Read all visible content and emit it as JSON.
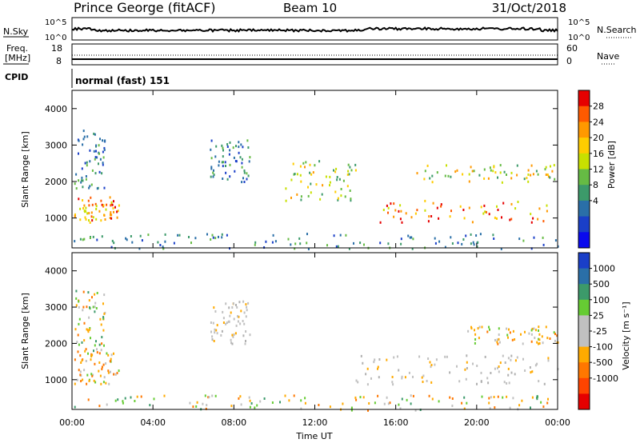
{
  "header": {
    "station": "Prince George (fitACF)",
    "beam": "Beam 10",
    "date": "31/Oct/2018"
  },
  "top_panels": {
    "nsky_label": "N.Sky",
    "nsearch_label": "N.Search",
    "nsky_ticks": [
      "10^5",
      "10^0"
    ],
    "nsearch_ticks": [
      "10^5",
      "10^0"
    ],
    "freq_label_1": "Freq.",
    "freq_label_2": "[MHz]",
    "freq_ticks": [
      "18",
      "8"
    ],
    "nave_label": "Nave",
    "nave_ticks": [
      "60",
      "0"
    ],
    "cpid_label": "CPID",
    "cpid_value": "normal (fast) 151"
  },
  "chart_data": [
    {
      "type": "heatmap",
      "quantity": "Power",
      "ylabel": "Slant Range [km]",
      "ylim": [
        180,
        4500
      ],
      "yticks": [
        1000,
        2000,
        3000,
        4000
      ],
      "xlabel": "Time UT",
      "xlim_hours": [
        0,
        24
      ],
      "xticks": [
        "00:00",
        "04:00",
        "08:00",
        "12:00",
        "16:00",
        "20:00",
        "00:00"
      ],
      "colorbar_label": "Power [dB]",
      "colorbar_ticks": [
        "28",
        "24",
        "20",
        "16",
        "12",
        "8",
        "4"
      ],
      "colorbar_colors": [
        "#e60000",
        "#ff5a00",
        "#ff9900",
        "#ffcc00",
        "#c8e000",
        "#66bb44",
        "#3c9a6a",
        "#2a6fa8",
        "#1a3fc8",
        "#0a0aee"
      ],
      "regions": [
        {
          "t": [
            0.1,
            2.3
          ],
          "r": [
            900,
            1600
          ],
          "level": "high"
        },
        {
          "t": [
            0.1,
            1.6
          ],
          "r": [
            1800,
            3500
          ],
          "level": "low"
        },
        {
          "t": [
            6.8,
            8.8
          ],
          "r": [
            2000,
            3200
          ],
          "level": "low"
        },
        {
          "t": [
            10.5,
            14.0
          ],
          "r": [
            1500,
            2600
          ],
          "level": "mid"
        },
        {
          "t": [
            15.2,
            24.0
          ],
          "r": [
            900,
            1500
          ],
          "level": "high"
        },
        {
          "t": [
            17.0,
            24.0
          ],
          "r": [
            2000,
            2500
          ],
          "level": "mid"
        },
        {
          "t": [
            0,
            24
          ],
          "r": [
            180,
            600
          ],
          "level": "low"
        }
      ]
    },
    {
      "type": "heatmap",
      "quantity": "Velocity",
      "ylabel": "Slant Range [km]",
      "ylim": [
        180,
        4500
      ],
      "yticks": [
        1000,
        2000,
        3000,
        4000
      ],
      "xlabel": "Time UT",
      "xlim_hours": [
        0,
        24
      ],
      "xticks": [
        "00:00",
        "04:00",
        "08:00",
        "12:00",
        "16:00",
        "20:00",
        "00:00"
      ],
      "colorbar_label": "Velocity [m s⁻¹]",
      "colorbar_ticks": [
        "1000",
        "500",
        "100",
        "25",
        "-25",
        "-100",
        "-500",
        "-1000"
      ],
      "colorbar_colors": [
        "#1a3fc8",
        "#2a6fa8",
        "#3c9a6a",
        "#66cc33",
        "#c0c0c0",
        "#c0c0c0",
        "#ffaa00",
        "#ff7700",
        "#ff4400",
        "#e60000"
      ],
      "regions": [
        {
          "t": [
            0.1,
            2.3
          ],
          "r": [
            900,
            1800
          ],
          "level": "neg"
        },
        {
          "t": [
            0.1,
            1.6
          ],
          "r": [
            1800,
            3500
          ],
          "level": "mixed"
        },
        {
          "t": [
            6.8,
            8.8
          ],
          "r": [
            2000,
            3200
          ],
          "level": "zero"
        },
        {
          "t": [
            14.0,
            24.0
          ],
          "r": [
            900,
            1700
          ],
          "level": "zero"
        },
        {
          "t": [
            19.5,
            24.0
          ],
          "r": [
            2000,
            2500
          ],
          "level": "neg"
        },
        {
          "t": [
            0,
            24
          ],
          "r": [
            180,
            600
          ],
          "level": "mixed"
        }
      ]
    }
  ]
}
